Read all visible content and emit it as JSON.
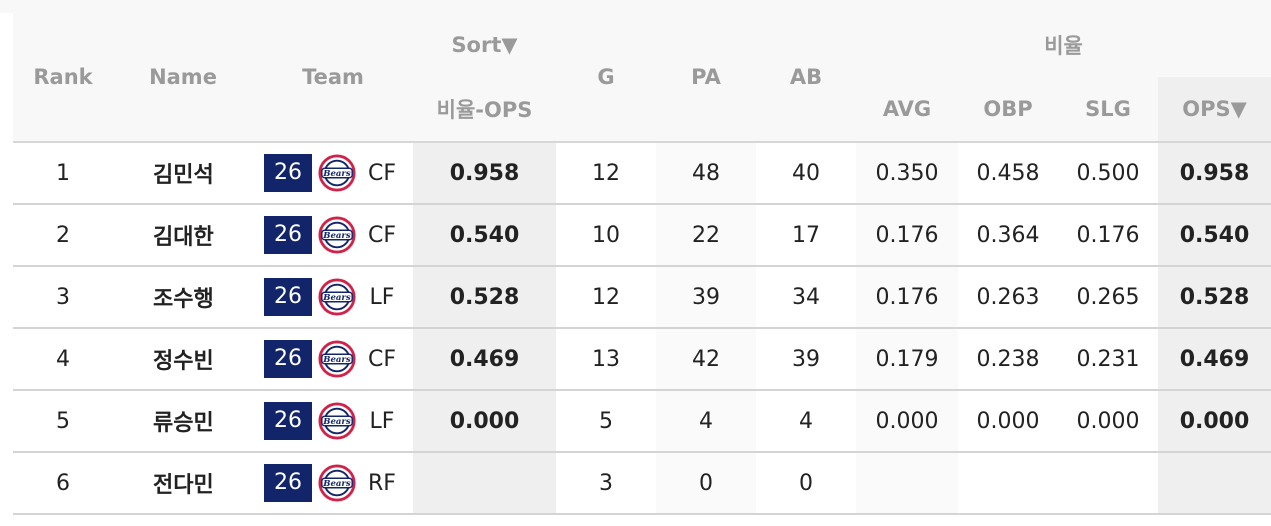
{
  "header": {
    "rank": "Rank",
    "name": "Name",
    "team": "Team",
    "sort": "Sort▼",
    "sort_sub": "비율-OPS",
    "g": "G",
    "pa": "PA",
    "ab": "AB",
    "group_ratio": "비율",
    "avg": "AVG",
    "obp": "OBP",
    "slg": "SLG",
    "ops": "OPS▼"
  },
  "rows": [
    {
      "rank": "1",
      "name": "김민석",
      "jersey": "26",
      "pos": "CF",
      "sort_val": "0.958",
      "g": "12",
      "pa": "48",
      "ab": "40",
      "avg": "0.350",
      "obp": "0.458",
      "slg": "0.500",
      "ops": "0.958"
    },
    {
      "rank": "2",
      "name": "김대한",
      "jersey": "26",
      "pos": "CF",
      "sort_val": "0.540",
      "g": "10",
      "pa": "22",
      "ab": "17",
      "avg": "0.176",
      "obp": "0.364",
      "slg": "0.176",
      "ops": "0.540"
    },
    {
      "rank": "3",
      "name": "조수행",
      "jersey": "26",
      "pos": "LF",
      "sort_val": "0.528",
      "g": "12",
      "pa": "39",
      "ab": "34",
      "avg": "0.176",
      "obp": "0.263",
      "slg": "0.265",
      "ops": "0.528"
    },
    {
      "rank": "4",
      "name": "정수빈",
      "jersey": "26",
      "pos": "CF",
      "sort_val": "0.469",
      "g": "13",
      "pa": "42",
      "ab": "39",
      "avg": "0.179",
      "obp": "0.238",
      "slg": "0.231",
      "ops": "0.469"
    },
    {
      "rank": "5",
      "name": "류승민",
      "jersey": "26",
      "pos": "LF",
      "sort_val": "0.000",
      "g": "5",
      "pa": "4",
      "ab": "4",
      "avg": "0.000",
      "obp": "0.000",
      "slg": "0.000",
      "ops": "0.000"
    },
    {
      "rank": "6",
      "name": "전다민",
      "jersey": "26",
      "pos": "RF",
      "sort_val": "",
      "g": "3",
      "pa": "0",
      "ab": "0",
      "avg": "",
      "obp": "",
      "slg": "",
      "ops": ""
    }
  ],
  "team_logo": {
    "icon": "bears-logo-icon",
    "text": "Bears"
  },
  "colors": {
    "jersey_bg": "#12246a",
    "header_text": "#9a9a9a",
    "sorted_col_bg": "#f2f2f2"
  }
}
